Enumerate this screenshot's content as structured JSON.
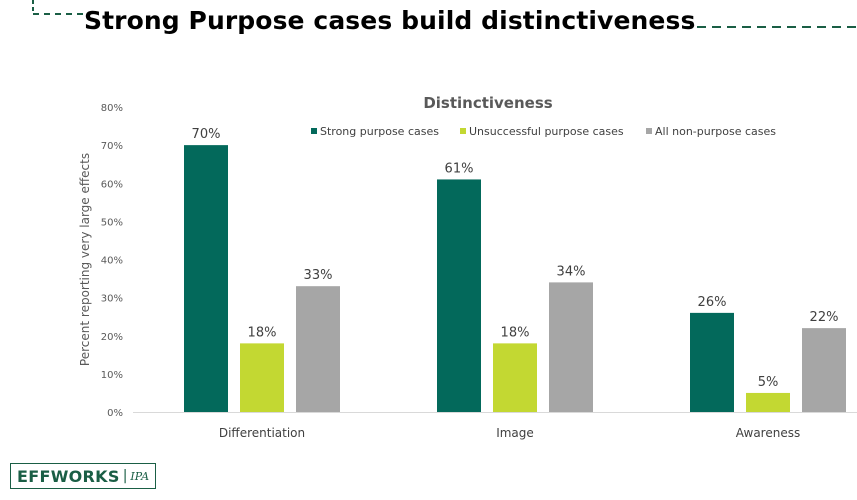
{
  "slide": {
    "title": "Strong Purpose cases build distinctiveness"
  },
  "logo": {
    "brand": "EFFWORKS",
    "partner": "IPA"
  },
  "colors": {
    "strong": "#03695b",
    "unsuccessful": "#c3d832",
    "nonpurpose": "#a6a6a6",
    "accent": "#1a5e45"
  },
  "chart_data": {
    "type": "bar",
    "title": "Distinctiveness",
    "xlabel": "",
    "ylabel": "Percent reporting very large effects",
    "ylim": [
      0,
      80
    ],
    "yticks": [
      0,
      10,
      20,
      30,
      40,
      50,
      60,
      70,
      80
    ],
    "ytick_labels": [
      "0%",
      "10%",
      "20%",
      "30%",
      "40%",
      "50%",
      "60%",
      "70%",
      "80%"
    ],
    "categories": [
      "Differentiation",
      "Image",
      "Awareness"
    ],
    "series": [
      {
        "name": "Strong purpose cases",
        "values": [
          70,
          61,
          26
        ],
        "labels": [
          "70%",
          "61%",
          "26%"
        ]
      },
      {
        "name": "Unsuccessful purpose cases",
        "values": [
          18,
          18,
          5
        ],
        "labels": [
          "18%",
          "18%",
          "5%"
        ]
      },
      {
        "name": "All non-purpose cases",
        "values": [
          33,
          34,
          22
        ],
        "labels": [
          "33%",
          "34%",
          "22%"
        ]
      }
    ],
    "legend": "top-right",
    "grid": false
  }
}
